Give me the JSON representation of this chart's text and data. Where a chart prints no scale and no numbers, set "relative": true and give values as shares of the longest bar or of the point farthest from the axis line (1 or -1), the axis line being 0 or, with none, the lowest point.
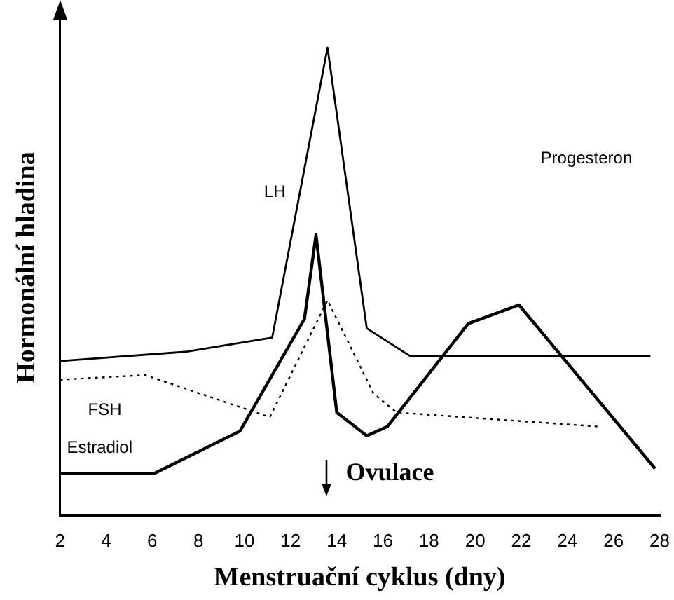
{
  "chart_data": {
    "type": "line",
    "relative": true,
    "xlabel": "Menstruační cyklus (dny)",
    "ylabel": "Hormonální hladina",
    "xlim": [
      2,
      28
    ],
    "xticks": [
      2,
      4,
      6,
      8,
      10,
      12,
      14,
      16,
      18,
      20,
      22,
      24,
      26,
      28
    ],
    "grid": false,
    "legend": false,
    "marker": "none",
    "series": [
      {
        "name": "LH",
        "color": "#000000",
        "line_style": "solid",
        "x": [
          2,
          7.5,
          11.2,
          13.6,
          15.3,
          17.2,
          23.5,
          27.6
        ],
        "values": [
          0.33,
          0.35,
          0.38,
          1,
          0.4,
          0.34,
          0.34,
          0.34
        ]
      },
      {
        "name": "FSH",
        "color": "#000000",
        "line_style": "dotted",
        "x": [
          2,
          5.7,
          11.1,
          13.6,
          15.6,
          16.6,
          25.3
        ],
        "values": [
          0.29,
          0.3,
          0.21,
          0.46,
          0.26,
          0.22,
          0.19
        ]
      },
      {
        "name": "Estradiol",
        "color": "#000000",
        "line_style": "solid",
        "x": [
          2,
          6.1,
          9.8,
          12.6,
          13.1,
          14,
          15.3,
          16.2,
          19.7,
          21.9,
          27.8
        ],
        "values": [
          0.09,
          0.09,
          0.18,
          0.42,
          0.6,
          0.22,
          0.17,
          0.19,
          0.41,
          0.45,
          0.1
        ]
      }
    ],
    "annotations": [
      "Progesteron",
      "Ovulace"
    ]
  }
}
